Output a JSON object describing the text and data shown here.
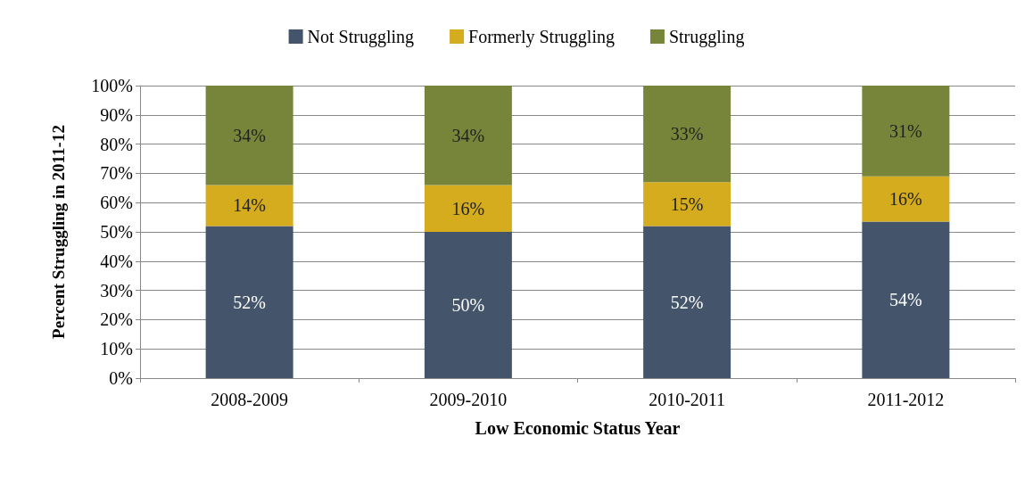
{
  "chart_data": {
    "type": "bar",
    "stacked": true,
    "xlabel": "Low Economic Status Year",
    "ylabel": "Percent Struggling in 2011-12",
    "categories": [
      "2008-2009",
      "2009-2010",
      "2010-2011",
      "2011-2012"
    ],
    "series": [
      {
        "name": "Not Struggling",
        "color": "#44546a",
        "values": [
          52,
          50,
          52,
          53.5
        ],
        "value_labels": [
          "52%",
          "50%",
          "52%",
          "54%"
        ]
      },
      {
        "name": "Formerly Struggling",
        "color": "#d4ac1e",
        "values": [
          14,
          16,
          15,
          15.5
        ],
        "value_labels": [
          "14%",
          "16%",
          "15%",
          "16%"
        ]
      },
      {
        "name": "Struggling",
        "color": "#77853a",
        "values": [
          34,
          34,
          33,
          31
        ],
        "value_labels": [
          "34%",
          "34%",
          "33%",
          "31%"
        ]
      }
    ],
    "ylim": [
      0,
      100
    ],
    "yticks": [
      {
        "value": 0,
        "label": "0%"
      },
      {
        "value": 10,
        "label": "10%"
      },
      {
        "value": 20,
        "label": "20%"
      },
      {
        "value": 30,
        "label": "30%"
      },
      {
        "value": 40,
        "label": "40%"
      },
      {
        "value": 50,
        "label": "50%"
      },
      {
        "value": 60,
        "label": "60%"
      },
      {
        "value": 70,
        "label": "70%"
      },
      {
        "value": 80,
        "label": "80%"
      },
      {
        "value": 90,
        "label": "90%"
      },
      {
        "value": 100,
        "label": "100%"
      }
    ],
    "grid": "y",
    "legend": "top"
  }
}
